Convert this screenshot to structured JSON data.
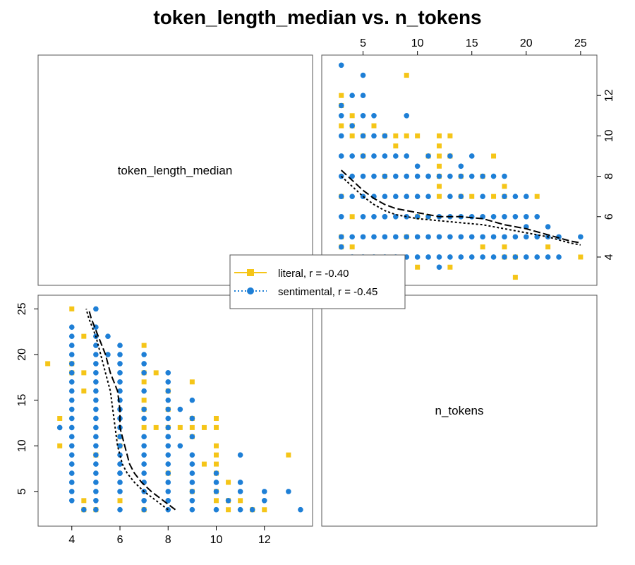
{
  "chart_data": {
    "type": "scatter",
    "title": "token_length_median vs. n_tokens",
    "variables": [
      "token_length_median",
      "n_tokens"
    ],
    "colors": {
      "literal": "#F5C518",
      "sentimental": "#1E7FD6",
      "smooth": "#000000"
    },
    "legend": {
      "placement": "center",
      "entries": [
        {
          "key": "literal",
          "label": "literal, r = -0.40",
          "marker": "square",
          "line": "solid"
        },
        {
          "key": "sentimental",
          "label": "sentimental, r = -0.45",
          "marker": "circle",
          "line": "dotted"
        }
      ]
    },
    "axes": {
      "n_tokens": {
        "range": [
          1.2,
          26.5
        ],
        "ticks": [
          5,
          10,
          15,
          20,
          25
        ]
      },
      "token_length_median": {
        "range": [
          2.6,
          14.0
        ],
        "ticks": [
          4,
          6,
          8,
          10,
          12
        ]
      }
    },
    "upper_panel": {
      "x": "n_tokens",
      "y": "token_length_median",
      "top_ticks": [
        "5",
        "10",
        "15",
        "20",
        "25"
      ],
      "right_ticks": [
        "4",
        "6",
        "8",
        "10",
        "12"
      ]
    },
    "lower_panel": {
      "x": "token_length_median",
      "y": "n_tokens",
      "bottom_ticks": [
        "4",
        "6",
        "8",
        "10",
        "12"
      ],
      "left_ticks": [
        "5",
        "10",
        "15",
        "20",
        "25"
      ]
    },
    "series": [
      {
        "key": "literal",
        "points": [
          [
            3,
            12
          ],
          [
            3,
            11.5
          ],
          [
            3,
            10.5
          ],
          [
            4,
            11
          ],
          [
            4,
            10.5
          ],
          [
            4,
            10
          ],
          [
            5,
            10
          ],
          [
            4,
            6
          ],
          [
            4,
            4.5
          ],
          [
            6,
            10.5
          ],
          [
            7,
            10
          ],
          [
            8,
            10
          ],
          [
            8,
            9.5
          ],
          [
            9,
            13
          ],
          [
            9,
            10
          ],
          [
            10,
            10
          ],
          [
            11,
            9
          ],
          [
            12,
            10
          ],
          [
            13,
            10
          ],
          [
            12,
            9.5
          ],
          [
            12,
            9
          ],
          [
            12,
            8.5
          ],
          [
            12,
            8
          ],
          [
            12,
            7.5
          ],
          [
            12,
            7
          ],
          [
            13,
            9
          ],
          [
            14,
            8
          ],
          [
            15,
            7
          ],
          [
            16,
            8
          ],
          [
            17,
            9
          ],
          [
            17,
            7
          ],
          [
            18,
            7
          ],
          [
            18,
            7.5
          ],
          [
            18,
            4
          ],
          [
            18,
            4.5
          ],
          [
            19,
            3
          ],
          [
            19,
            4
          ],
          [
            21,
            7
          ],
          [
            22,
            4.5
          ],
          [
            25,
            4
          ],
          [
            16,
            4.5
          ],
          [
            10,
            3.5
          ],
          [
            13,
            3.5
          ],
          [
            7,
            8
          ],
          [
            10,
            6
          ],
          [
            11,
            6
          ],
          [
            9,
            5
          ],
          [
            14,
            7
          ],
          [
            5,
            9
          ],
          [
            3,
            4.5
          ],
          [
            3,
            5
          ],
          [
            3,
            7
          ]
        ],
        "smooth": [
          [
            3,
            8.3
          ],
          [
            4,
            7.8
          ],
          [
            5,
            7.3
          ],
          [
            6,
            6.9
          ],
          [
            7,
            6.6
          ],
          [
            8,
            6.4
          ],
          [
            10,
            6.2
          ],
          [
            12,
            6.0
          ],
          [
            14,
            6.0
          ],
          [
            16,
            5.9
          ],
          [
            18,
            5.6
          ],
          [
            20,
            5.4
          ],
          [
            22,
            5.1
          ],
          [
            24,
            4.8
          ],
          [
            25,
            4.7
          ]
        ]
      },
      {
        "key": "sentimental",
        "points": [
          [
            3,
            13.5
          ],
          [
            3,
            11.5
          ],
          [
            4,
            12
          ],
          [
            3,
            11
          ],
          [
            4,
            10.5
          ],
          [
            3,
            10
          ],
          [
            3,
            9
          ],
          [
            4,
            9
          ],
          [
            5,
            9
          ],
          [
            6,
            9
          ],
          [
            3,
            8
          ],
          [
            4,
            8
          ],
          [
            5,
            8
          ],
          [
            6,
            8
          ],
          [
            7,
            8
          ],
          [
            8,
            8
          ],
          [
            9,
            8
          ],
          [
            10,
            8
          ],
          [
            11,
            8
          ],
          [
            12,
            8
          ],
          [
            13,
            8
          ],
          [
            14,
            8
          ],
          [
            15,
            8
          ],
          [
            16,
            8
          ],
          [
            17,
            8
          ],
          [
            18,
            8
          ],
          [
            3,
            7
          ],
          [
            4,
            7
          ],
          [
            5,
            7
          ],
          [
            6,
            7
          ],
          [
            7,
            7
          ],
          [
            8,
            7
          ],
          [
            9,
            7
          ],
          [
            10,
            7
          ],
          [
            11,
            7
          ],
          [
            13,
            7
          ],
          [
            14,
            7
          ],
          [
            16,
            7
          ],
          [
            18,
            7
          ],
          [
            19,
            7
          ],
          [
            20,
            7
          ],
          [
            3,
            6
          ],
          [
            5,
            6
          ],
          [
            6,
            6
          ],
          [
            7,
            6
          ],
          [
            8,
            6
          ],
          [
            9,
            6
          ],
          [
            10,
            6
          ],
          [
            11,
            6
          ],
          [
            12,
            6
          ],
          [
            13,
            6
          ],
          [
            14,
            6
          ],
          [
            15,
            6
          ],
          [
            16,
            6
          ],
          [
            17,
            6
          ],
          [
            18,
            6
          ],
          [
            19,
            6
          ],
          [
            20,
            6
          ],
          [
            21,
            6
          ],
          [
            4,
            5
          ],
          [
            5,
            5
          ],
          [
            6,
            5
          ],
          [
            7,
            5
          ],
          [
            8,
            5
          ],
          [
            9,
            5
          ],
          [
            10,
            5
          ],
          [
            11,
            5
          ],
          [
            12,
            5
          ],
          [
            13,
            5
          ],
          [
            14,
            5
          ],
          [
            15,
            5
          ],
          [
            16,
            5
          ],
          [
            17,
            5
          ],
          [
            18,
            5
          ],
          [
            19,
            5
          ],
          [
            20,
            5
          ],
          [
            21,
            5
          ],
          [
            22,
            5
          ],
          [
            23,
            5
          ],
          [
            25,
            5
          ],
          [
            5,
            4
          ],
          [
            6,
            4
          ],
          [
            7,
            4
          ],
          [
            8,
            4
          ],
          [
            9,
            4
          ],
          [
            10,
            4
          ],
          [
            11,
            4
          ],
          [
            12,
            4
          ],
          [
            13,
            4
          ],
          [
            14,
            4
          ],
          [
            15,
            4
          ],
          [
            16,
            4
          ],
          [
            17,
            4
          ],
          [
            18,
            4
          ],
          [
            19,
            4
          ],
          [
            20,
            4
          ],
          [
            21,
            4
          ],
          [
            22,
            4
          ],
          [
            23,
            4
          ],
          [
            12,
            3.5
          ],
          [
            5,
            13
          ],
          [
            5,
            12
          ],
          [
            5,
            11
          ],
          [
            6,
            11
          ],
          [
            6,
            10
          ],
          [
            7,
            10
          ],
          [
            9,
            11
          ],
          [
            5,
            10
          ],
          [
            7,
            9
          ],
          [
            8,
            9
          ],
          [
            10,
            8.5
          ],
          [
            11,
            8
          ],
          [
            14,
            8.5
          ],
          [
            15,
            9
          ],
          [
            20,
            5.5
          ],
          [
            22,
            5.5
          ],
          [
            4,
            4
          ],
          [
            3,
            4.5
          ],
          [
            3,
            5
          ],
          [
            7,
            6
          ],
          [
            9,
            9
          ],
          [
            11,
            9
          ],
          [
            13,
            9
          ]
        ],
        "smooth": [
          [
            3,
            8.0
          ],
          [
            4,
            7.5
          ],
          [
            5,
            7.0
          ],
          [
            6,
            6.6
          ],
          [
            7,
            6.3
          ],
          [
            8,
            6.1
          ],
          [
            10,
            5.9
          ],
          [
            12,
            5.8
          ],
          [
            14,
            5.7
          ],
          [
            16,
            5.6
          ],
          [
            18,
            5.4
          ],
          [
            20,
            5.2
          ],
          [
            22,
            5.0
          ],
          [
            24,
            4.7
          ],
          [
            25,
            4.6
          ]
        ]
      }
    ]
  }
}
